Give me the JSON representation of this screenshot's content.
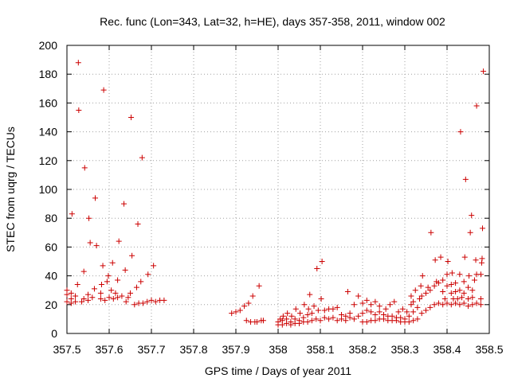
{
  "chart_data": {
    "type": "scatter",
    "title": "Rec. func (Lon=343, Lat=32, h=HE), days 357-358, 2011, window 002",
    "xlabel": "GPS time / Days of year 2011",
    "ylabel": "STEC from uqrg / TECUs",
    "xlim": [
      357.5,
      358.5
    ],
    "ylim": [
      0,
      200
    ],
    "xticks": [
      357.5,
      357.6,
      357.7,
      357.8,
      357.9,
      358.0,
      358.1,
      358.2,
      358.3,
      358.4,
      358.5
    ],
    "xtick_labels": [
      "357.5",
      "357.6",
      "357.7",
      "357.8",
      "357.9",
      "358",
      "358.1",
      "358.2",
      "358.3",
      "358.4",
      "358.5"
    ],
    "yticks": [
      0,
      20,
      40,
      60,
      80,
      100,
      120,
      140,
      160,
      180,
      200
    ],
    "ytick_labels": [
      "0",
      "20",
      "40",
      "60",
      "80",
      "100",
      "120",
      "140",
      "160",
      "180",
      "200"
    ],
    "grid": true,
    "marker": "+",
    "color": "#cc0000",
    "series": [
      {
        "name": "STEC",
        "points": [
          [
            357.5,
            22
          ],
          [
            357.5,
            27
          ],
          [
            357.5,
            30
          ],
          [
            357.51,
            21
          ],
          [
            357.51,
            24
          ],
          [
            357.51,
            28
          ],
          [
            357.512,
            83
          ],
          [
            357.52,
            22
          ],
          [
            357.52,
            26
          ],
          [
            357.525,
            34
          ],
          [
            357.527,
            188
          ],
          [
            357.528,
            155
          ],
          [
            357.535,
            22
          ],
          [
            357.54,
            24
          ],
          [
            357.54,
            43
          ],
          [
            357.542,
            115
          ],
          [
            357.55,
            23
          ],
          [
            357.55,
            27
          ],
          [
            357.552,
            80
          ],
          [
            357.555,
            63
          ],
          [
            357.56,
            25
          ],
          [
            357.565,
            31
          ],
          [
            357.567,
            94
          ],
          [
            357.57,
            61
          ],
          [
            357.58,
            24
          ],
          [
            357.58,
            28
          ],
          [
            357.582,
            34
          ],
          [
            357.585,
            47
          ],
          [
            357.587,
            169
          ],
          [
            357.59,
            23
          ],
          [
            357.595,
            36
          ],
          [
            357.598,
            40
          ],
          [
            357.6,
            25
          ],
          [
            357.605,
            30
          ],
          [
            357.608,
            49
          ],
          [
            357.61,
            24
          ],
          [
            357.615,
            28
          ],
          [
            357.62,
            25
          ],
          [
            357.62,
            37
          ],
          [
            357.623,
            64
          ],
          [
            357.63,
            26
          ],
          [
            357.635,
            90
          ],
          [
            357.638,
            44
          ],
          [
            357.64,
            22
          ],
          [
            357.645,
            25
          ],
          [
            357.65,
            28
          ],
          [
            357.652,
            150
          ],
          [
            357.654,
            54
          ],
          [
            357.66,
            20
          ],
          [
            357.665,
            32
          ],
          [
            357.668,
            76
          ],
          [
            357.67,
            21
          ],
          [
            357.675,
            36
          ],
          [
            357.678,
            122
          ],
          [
            357.68,
            21
          ],
          [
            357.69,
            22
          ],
          [
            357.692,
            41
          ],
          [
            357.7,
            23
          ],
          [
            357.705,
            47
          ],
          [
            357.71,
            22
          ],
          [
            357.72,
            23
          ],
          [
            357.73,
            23
          ],
          [
            357.89,
            14
          ],
          [
            357.9,
            15
          ],
          [
            357.91,
            16
          ],
          [
            357.92,
            19
          ],
          [
            357.925,
            9
          ],
          [
            357.93,
            21
          ],
          [
            357.935,
            8
          ],
          [
            357.94,
            26
          ],
          [
            357.945,
            8
          ],
          [
            357.95,
            8
          ],
          [
            357.955,
            33
          ],
          [
            357.96,
            9
          ],
          [
            357.965,
            9
          ],
          [
            358.0,
            6
          ],
          [
            358.0,
            8
          ],
          [
            358.005,
            10
          ],
          [
            358.01,
            6
          ],
          [
            358.01,
            9
          ],
          [
            358.012,
            12
          ],
          [
            358.02,
            7
          ],
          [
            358.02,
            10
          ],
          [
            358.022,
            14
          ],
          [
            358.03,
            6
          ],
          [
            358.03,
            8
          ],
          [
            358.032,
            12
          ],
          [
            358.04,
            7
          ],
          [
            358.04,
            10
          ],
          [
            358.042,
            17
          ],
          [
            358.05,
            7
          ],
          [
            358.05,
            9
          ],
          [
            358.052,
            14
          ],
          [
            358.06,
            8
          ],
          [
            358.06,
            11
          ],
          [
            358.062,
            20
          ],
          [
            358.07,
            8
          ],
          [
            358.07,
            13
          ],
          [
            358.072,
            17
          ],
          [
            358.075,
            27
          ],
          [
            358.08,
            9
          ],
          [
            358.08,
            14
          ],
          [
            358.085,
            19
          ],
          [
            358.09,
            10
          ],
          [
            358.092,
            45
          ],
          [
            358.095,
            16
          ],
          [
            358.1,
            9
          ],
          [
            358.102,
            24
          ],
          [
            358.104,
            50
          ],
          [
            358.11,
            11
          ],
          [
            358.11,
            16
          ],
          [
            358.12,
            10
          ],
          [
            358.12,
            17
          ],
          [
            358.13,
            11
          ],
          [
            358.13,
            17
          ],
          [
            358.14,
            9
          ],
          [
            358.14,
            18
          ],
          [
            358.15,
            10
          ],
          [
            358.15,
            13
          ],
          [
            358.16,
            9
          ],
          [
            358.16,
            12
          ],
          [
            358.165,
            29
          ],
          [
            358.17,
            11
          ],
          [
            358.17,
            14
          ],
          [
            358.18,
            10
          ],
          [
            358.18,
            20
          ],
          [
            358.19,
            12
          ],
          [
            358.19,
            26
          ],
          [
            358.2,
            8
          ],
          [
            358.2,
            14
          ],
          [
            358.2,
            21
          ],
          [
            358.21,
            8
          ],
          [
            358.21,
            16
          ],
          [
            358.21,
            23
          ],
          [
            358.22,
            9
          ],
          [
            358.22,
            15
          ],
          [
            358.22,
            20
          ],
          [
            358.23,
            9
          ],
          [
            358.23,
            13
          ],
          [
            358.23,
            22
          ],
          [
            358.24,
            10
          ],
          [
            358.24,
            15
          ],
          [
            358.24,
            19
          ],
          [
            358.25,
            10
          ],
          [
            358.25,
            13
          ],
          [
            358.255,
            17
          ],
          [
            358.26,
            9
          ],
          [
            358.26,
            12
          ],
          [
            358.265,
            20
          ],
          [
            358.27,
            9
          ],
          [
            358.27,
            12
          ],
          [
            358.275,
            22
          ],
          [
            358.28,
            9
          ],
          [
            358.28,
            11
          ],
          [
            358.285,
            15
          ],
          [
            358.29,
            8
          ],
          [
            358.29,
            11
          ],
          [
            358.295,
            17
          ],
          [
            358.3,
            8
          ],
          [
            358.3,
            10
          ],
          [
            358.305,
            15
          ],
          [
            358.31,
            8
          ],
          [
            358.31,
            12
          ],
          [
            358.315,
            20
          ],
          [
            358.315,
            26
          ],
          [
            358.32,
            9
          ],
          [
            358.32,
            15
          ],
          [
            358.32,
            22
          ],
          [
            358.325,
            30
          ],
          [
            358.33,
            10
          ],
          [
            358.33,
            18
          ],
          [
            358.335,
            24
          ],
          [
            358.338,
            33
          ],
          [
            358.34,
            14
          ],
          [
            358.34,
            26
          ],
          [
            358.342,
            40
          ],
          [
            358.35,
            16
          ],
          [
            358.35,
            28
          ],
          [
            358.355,
            32
          ],
          [
            358.36,
            18
          ],
          [
            358.36,
            30
          ],
          [
            358.362,
            70
          ],
          [
            358.37,
            20
          ],
          [
            358.37,
            33
          ],
          [
            358.372,
            51
          ],
          [
            358.375,
            36
          ],
          [
            358.38,
            21
          ],
          [
            358.38,
            35
          ],
          [
            358.385,
            53
          ],
          [
            358.39,
            20
          ],
          [
            358.39,
            29
          ],
          [
            358.39,
            37
          ],
          [
            358.395,
            24
          ],
          [
            358.4,
            21
          ],
          [
            358.4,
            33
          ],
          [
            358.4,
            41
          ],
          [
            358.402,
            50
          ],
          [
            358.41,
            20
          ],
          [
            358.41,
            28
          ],
          [
            358.41,
            34
          ],
          [
            358.412,
            42
          ],
          [
            358.415,
            24
          ],
          [
            358.42,
            21
          ],
          [
            358.42,
            29
          ],
          [
            358.42,
            35
          ],
          [
            358.425,
            24
          ],
          [
            358.43,
            20
          ],
          [
            358.43,
            30
          ],
          [
            358.43,
            41
          ],
          [
            358.432,
            140
          ],
          [
            358.435,
            25
          ],
          [
            358.44,
            21
          ],
          [
            358.44,
            28
          ],
          [
            358.44,
            36
          ],
          [
            358.442,
            53
          ],
          [
            358.444,
            107
          ],
          [
            358.45,
            19
          ],
          [
            358.45,
            24
          ],
          [
            358.45,
            32
          ],
          [
            358.452,
            40
          ],
          [
            358.455,
            70
          ],
          [
            358.458,
            82
          ],
          [
            358.46,
            20
          ],
          [
            358.46,
            25
          ],
          [
            358.46,
            30
          ],
          [
            358.465,
            37
          ],
          [
            358.468,
            51
          ],
          [
            358.47,
            158
          ],
          [
            358.47,
            21
          ],
          [
            358.47,
            41
          ],
          [
            358.48,
            20
          ],
          [
            358.48,
            24
          ],
          [
            358.48,
            41
          ],
          [
            358.482,
            49
          ],
          [
            358.483,
            52
          ],
          [
            358.484,
            73
          ],
          [
            358.486,
            182
          ]
        ]
      }
    ]
  }
}
